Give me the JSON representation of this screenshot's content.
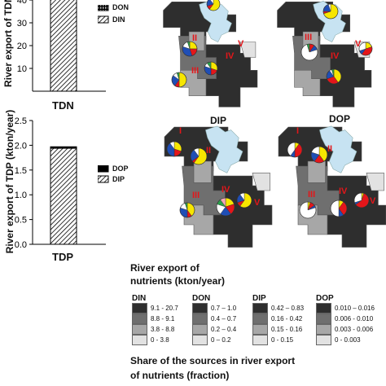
{
  "chart_data": [
    {
      "type": "bar",
      "stacked": true,
      "ylabel": "River export of TDN",
      "categories": [
        "TDN"
      ],
      "ylim": [
        0,
        50
      ],
      "yticks": [
        "10",
        "20",
        "30",
        "40"
      ],
      "series": [
        {
          "name": "DON",
          "values": [
            0.5
          ]
        },
        {
          "name": "DIN",
          "values": [
            49.5
          ]
        }
      ]
    },
    {
      "type": "bar",
      "stacked": true,
      "ylabel": "River export of TDP (kton/year)",
      "categories": [
        "TDP"
      ],
      "ylim": [
        0,
        2.5
      ],
      "yticks": [
        "0.0",
        "0.5",
        "1.0",
        "1.5",
        "2.0",
        "2.5"
      ],
      "series": [
        {
          "name": "DOP",
          "values": [
            0.03
          ]
        },
        {
          "name": "DIP",
          "values": [
            1.94
          ]
        }
      ]
    }
  ],
  "maps": {
    "titles": [
      "DIP",
      "DOP"
    ],
    "regions": [
      "I",
      "II",
      "III",
      "IV",
      "V"
    ],
    "pie_colors": [
      "#f7e600",
      "#e4161a",
      "#1f4eb5",
      "#ffffff",
      "#2aa04a",
      "#f2a7b8"
    ],
    "lake_color": "#c7e3f2"
  },
  "legend": {
    "title_line1": "River export of",
    "title_line2": "nutrients (kton/year)",
    "groups": [
      {
        "name": "DIN",
        "items": [
          "9.1 - 20.7",
          "8.8 - 9.1",
          "3.8 - 8.8",
          "0 - 3.8"
        ]
      },
      {
        "name": "DON",
        "items": [
          "0.7 – 1.0",
          "0.4 – 0.7",
          "0.2 – 0.4",
          "0 – 0.2"
        ]
      },
      {
        "name": "DIP",
        "items": [
          "0.42 – 0.83",
          "0.16 - 0.42",
          "0.15 - 0.16",
          "0 - 0.15"
        ]
      },
      {
        "name": "DOP",
        "items": [
          "0.010 – 0.016",
          "0.006 - 0.010",
          "0.003 - 0.006",
          "0 - 0.003"
        ]
      }
    ],
    "shades": [
      "#2e2e2e",
      "#6f6f6f",
      "#a7a7a7",
      "#e2e2e2"
    ],
    "share_line1": "Share of the sources in river export",
    "share_line2": "of nutrients (fraction)"
  }
}
